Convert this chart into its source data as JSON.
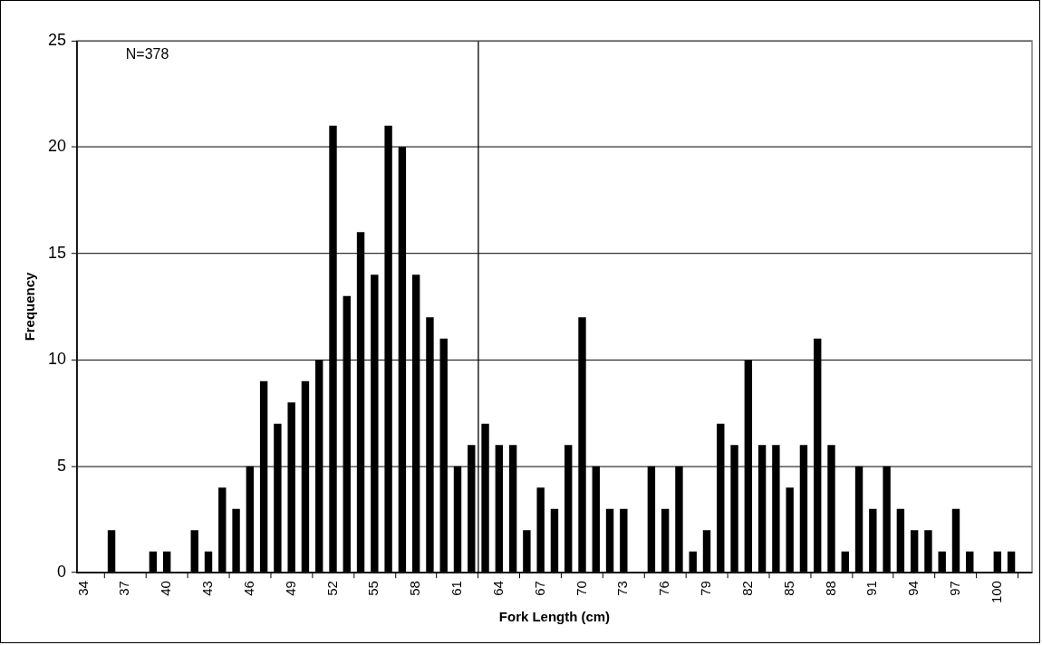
{
  "chart_data": {
    "type": "bar",
    "xlabel": "Fork Length (cm)",
    "ylabel": "Frequency",
    "x": [
      34,
      35,
      36,
      37,
      38,
      39,
      40,
      41,
      42,
      43,
      44,
      45,
      46,
      47,
      48,
      49,
      50,
      51,
      52,
      53,
      54,
      55,
      56,
      57,
      58,
      59,
      60,
      61,
      62,
      63,
      64,
      65,
      66,
      67,
      68,
      69,
      70,
      71,
      72,
      73,
      74,
      75,
      76,
      77,
      78,
      79,
      80,
      81,
      82,
      83,
      84,
      85,
      86,
      87,
      88,
      89,
      90,
      91,
      92,
      93,
      94,
      95,
      96,
      97,
      98,
      99,
      100,
      101,
      102
    ],
    "values": [
      0,
      0,
      2,
      0,
      0,
      1,
      1,
      0,
      2,
      1,
      4,
      3,
      5,
      9,
      7,
      8,
      9,
      10,
      21,
      13,
      16,
      14,
      21,
      20,
      14,
      12,
      11,
      5,
      6,
      7,
      6,
      6,
      2,
      4,
      3,
      6,
      12,
      5,
      3,
      3,
      0,
      5,
      3,
      5,
      1,
      2,
      7,
      6,
      10,
      6,
      6,
      4,
      6,
      11,
      6,
      1,
      5,
      3,
      5,
      3,
      2,
      2,
      1,
      3,
      1,
      0,
      1,
      1,
      0
    ],
    "color": "#000000",
    "xlim": [
      33.5,
      102.5
    ],
    "xticks": [
      34,
      37,
      40,
      43,
      46,
      49,
      52,
      55,
      58,
      61,
      64,
      67,
      70,
      73,
      76,
      79,
      82,
      85,
      88,
      91,
      94,
      97,
      100
    ],
    "ylim": [
      0,
      25
    ],
    "yticks": [
      0,
      5,
      10,
      15,
      20,
      25
    ],
    "grid": "y",
    "legend": false,
    "ref_lines": [
      {
        "axis": "x",
        "value": 62.5,
        "color": "#000000"
      }
    ],
    "annotations": [
      "N=378"
    ]
  }
}
